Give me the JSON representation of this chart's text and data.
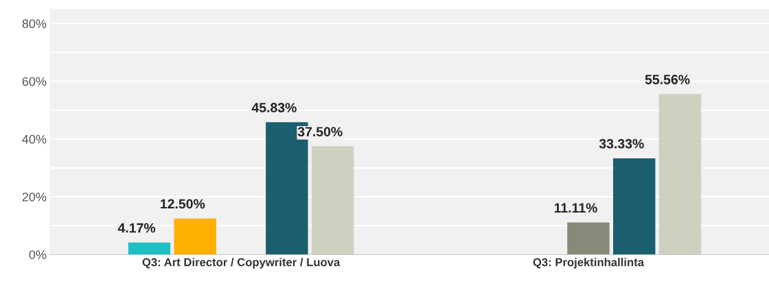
{
  "chart_data": {
    "type": "bar",
    "categories": [
      "Q3: Art Director / Copywriter / Luova",
      "Q3: Projektinhallinta"
    ],
    "series": [
      {
        "color": "#1fc0c4",
        "values": [
          4.17,
          null
        ],
        "value_labels": [
          "4.17%",
          null
        ]
      },
      {
        "color": "#ffb000",
        "values": [
          12.5,
          null
        ],
        "value_labels": [
          "12.50%",
          null
        ]
      },
      {
        "color": "#878a78",
        "values": [
          null,
          11.11
        ],
        "value_labels": [
          null,
          "11.11%"
        ]
      },
      {
        "color": "#1b5f6e",
        "values": [
          45.83,
          33.33
        ],
        "value_labels": [
          "45.83%",
          "33.33%"
        ]
      },
      {
        "color": "#cfd0c0",
        "values": [
          37.5,
          55.56
        ],
        "value_labels": [
          "37.50%",
          "55.56%"
        ]
      }
    ],
    "ylim": [
      0,
      85
    ],
    "yticks": [
      {
        "value": 0,
        "label": "0%"
      },
      {
        "value": 10,
        "label": null
      },
      {
        "value": 20,
        "label": "20%"
      },
      {
        "value": 30,
        "label": null
      },
      {
        "value": 40,
        "label": "40%"
      },
      {
        "value": 50,
        "label": null
      },
      {
        "value": 60,
        "label": "60%"
      },
      {
        "value": 70,
        "label": null
      },
      {
        "value": 80,
        "label": "80%"
      }
    ],
    "grid": "y",
    "legend": false
  }
}
